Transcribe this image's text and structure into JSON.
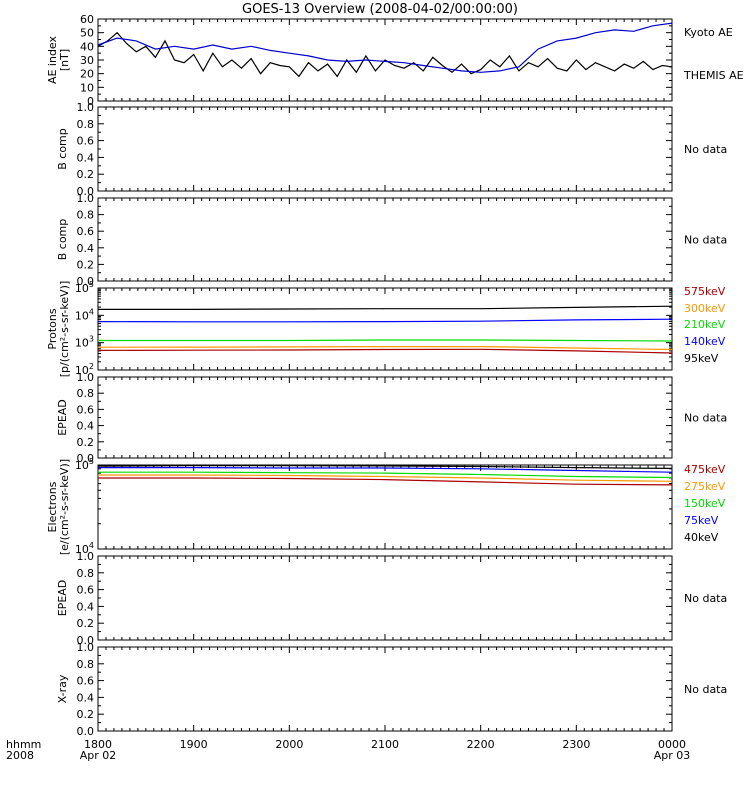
{
  "title": "GOES-13 Overview (2008-04-02/00:00:00)",
  "x_axis": {
    "corner_label_1": "hhmm",
    "corner_label_2": "2008",
    "ticks": [
      {
        "label": "1800",
        "sub": "Apr 02"
      },
      {
        "label": "1900",
        "sub": ""
      },
      {
        "label": "2000",
        "sub": ""
      },
      {
        "label": "2100",
        "sub": ""
      },
      {
        "label": "2200",
        "sub": ""
      },
      {
        "label": "2300",
        "sub": ""
      },
      {
        "label": "0000",
        "sub": "Apr 03"
      }
    ]
  },
  "chart_data": [
    {
      "type": "line",
      "ylabel": "AE index",
      "ylabel2": "[nT]",
      "ylim": [
        0,
        60
      ],
      "yticks": [
        "0",
        "10",
        "20",
        "30",
        "40",
        "50",
        "60"
      ],
      "xlim_hours": [
        18,
        24
      ],
      "series": [
        {
          "name": "Kyoto AE",
          "color": "#000000",
          "x": [
            18.0,
            18.1,
            18.2,
            18.3,
            18.4,
            18.5,
            18.6,
            18.7,
            18.8,
            18.9,
            19.0,
            19.1,
            19.2,
            19.3,
            19.4,
            19.5,
            19.6,
            19.7,
            19.8,
            19.9,
            20.0,
            20.1,
            20.2,
            20.3,
            20.4,
            20.5,
            20.6,
            20.7,
            20.8,
            20.9,
            21.0,
            21.1,
            21.2,
            21.3,
            21.4,
            21.5,
            21.6,
            21.7,
            21.8,
            21.9,
            22.0,
            22.1,
            22.2,
            22.3,
            22.4,
            22.5,
            22.6,
            22.7,
            22.8,
            22.9,
            23.0,
            23.1,
            23.2,
            23.3,
            23.4,
            23.5,
            23.6,
            23.7,
            23.8,
            23.9,
            24.0
          ],
          "values": [
            40,
            44,
            50,
            42,
            36,
            40,
            32,
            44,
            30,
            28,
            34,
            22,
            35,
            25,
            30,
            24,
            31,
            20,
            28,
            26,
            25,
            18,
            28,
            22,
            27,
            18,
            30,
            21,
            33,
            22,
            30,
            26,
            24,
            28,
            22,
            32,
            26,
            21,
            27,
            20,
            23,
            30,
            25,
            33,
            22,
            28,
            25,
            31,
            24,
            22,
            30,
            23,
            28,
            25,
            22,
            27,
            24,
            29,
            23,
            26,
            25
          ]
        },
        {
          "name": "THEMIS AE",
          "color": "#0000cc",
          "x": [
            18.0,
            18.2,
            18.4,
            18.6,
            18.8,
            19.0,
            19.2,
            19.4,
            19.6,
            19.8,
            20.0,
            20.2,
            20.4,
            20.6,
            20.8,
            21.0,
            21.2,
            21.4,
            21.6,
            21.8,
            22.0,
            22.2,
            22.4,
            22.6,
            22.8,
            23.0,
            23.2,
            23.4,
            23.6,
            23.8,
            24.0
          ],
          "values": [
            41,
            46,
            44,
            38,
            40,
            38,
            41,
            38,
            40,
            37,
            35,
            33,
            30,
            29,
            30,
            29,
            28,
            26,
            24,
            22,
            21,
            22,
            25,
            38,
            44,
            46,
            50,
            52,
            51,
            55,
            57
          ]
        }
      ]
    },
    {
      "type": "line",
      "ylabel": "B comp",
      "ylim": [
        0,
        1
      ],
      "yticks": [
        "0.0",
        "0.2",
        "0.4",
        "0.6",
        "0.8",
        "1.0"
      ],
      "status": "No data",
      "series": []
    },
    {
      "type": "line",
      "ylabel": "B comp",
      "ylim": [
        0,
        1
      ],
      "yticks": [
        "0.0",
        "0.2",
        "0.4",
        "0.6",
        "0.8",
        "1.0"
      ],
      "status": "No data",
      "series": []
    },
    {
      "type": "line",
      "ylabel": "Protons",
      "ylabel2": "[p/(cm²-s-sr-keV)]",
      "log_scale": true,
      "ylim": [
        100,
        100000
      ],
      "yticks": [
        {
          "b": "10",
          "e": "2"
        },
        {
          "b": "10",
          "e": "3"
        },
        {
          "b": "10",
          "e": "4"
        },
        {
          "b": "10",
          "e": "5"
        }
      ],
      "xlim_hours": [
        18,
        24
      ],
      "series": [
        {
          "name": "575keV",
          "color": "#aa0000",
          "x": [
            18,
            19,
            20,
            21,
            22,
            23,
            24
          ],
          "values": [
            520,
            530,
            540,
            560,
            570,
            500,
            420
          ]
        },
        {
          "name": "300keV",
          "color": "#ff9900",
          "x": [
            18,
            19,
            20,
            21,
            22,
            23,
            24
          ],
          "values": [
            680,
            690,
            700,
            720,
            720,
            640,
            560
          ]
        },
        {
          "name": "210keV",
          "color": "#00dd00",
          "x": [
            18,
            19,
            20,
            21,
            22,
            23,
            24
          ],
          "values": [
            1200,
            1200,
            1200,
            1250,
            1250,
            1200,
            1150
          ]
        },
        {
          "name": "140keV",
          "color": "#0000ff",
          "x": [
            18,
            19,
            20,
            21,
            22,
            23,
            24
          ],
          "values": [
            5900,
            5800,
            5800,
            5900,
            6100,
            6800,
            7200
          ]
        },
        {
          "name": "95keV",
          "color": "#000000",
          "x": [
            18,
            19,
            20,
            21,
            22,
            23,
            24
          ],
          "values": [
            16500,
            16500,
            17000,
            17500,
            17500,
            19500,
            21500
          ]
        }
      ]
    },
    {
      "type": "line",
      "ylabel": "EPEAD",
      "ylim": [
        0,
        1
      ],
      "yticks": [
        "0.0",
        "0.2",
        "0.4",
        "0.6",
        "0.8",
        "1.0"
      ],
      "status": "No data",
      "series": []
    },
    {
      "type": "line",
      "ylabel": "Electrons",
      "ylabel2": "[e/(cm²-s-sr-keV)]",
      "log_scale": true,
      "ylim": [
        10000,
        100000
      ],
      "yticks": [
        {
          "b": "10",
          "e": "4"
        },
        {
          "b": "10",
          "e": "5"
        }
      ],
      "xlim_hours": [
        18,
        24
      ],
      "series": [
        {
          "name": "475keV",
          "color": "#aa0000",
          "x": [
            18,
            19,
            20,
            21,
            22,
            23,
            24
          ],
          "values": [
            70000,
            70000,
            69000,
            67000,
            63000,
            59000,
            58000
          ]
        },
        {
          "name": "275keV",
          "color": "#ff9900",
          "x": [
            18,
            19,
            20,
            21,
            22,
            23,
            24
          ],
          "values": [
            76000,
            76000,
            75000,
            73000,
            70000,
            66000,
            64000
          ]
        },
        {
          "name": "150keV",
          "color": "#00dd00",
          "x": [
            18,
            19,
            20,
            21,
            22,
            23,
            24
          ],
          "values": [
            82000,
            82000,
            81000,
            80000,
            77000,
            73000,
            71000
          ]
        },
        {
          "name": "75keV",
          "color": "#0000ff",
          "x": [
            18,
            19,
            20,
            21,
            22,
            23,
            24
          ],
          "values": [
            93000,
            93000,
            92000,
            92000,
            90000,
            86000,
            82000
          ]
        },
        {
          "name": "40keV",
          "color": "#000000",
          "x": [
            18,
            19,
            20,
            21,
            22,
            23,
            24
          ],
          "values": [
            97000,
            98000,
            98000,
            97500,
            96000,
            93000,
            91000
          ]
        }
      ]
    },
    {
      "type": "line",
      "ylabel": "EPEAD",
      "ylim": [
        0,
        1
      ],
      "yticks": [
        "0.0",
        "0.2",
        "0.4",
        "0.6",
        "0.8",
        "1.0"
      ],
      "status": "No data",
      "series": []
    },
    {
      "type": "line",
      "ylabel": "X-ray",
      "ylim": [
        0,
        1
      ],
      "yticks": [
        "0.0",
        "0.2",
        "0.4",
        "0.6",
        "0.8",
        "1.0"
      ],
      "status": "No data",
      "series": []
    }
  ]
}
